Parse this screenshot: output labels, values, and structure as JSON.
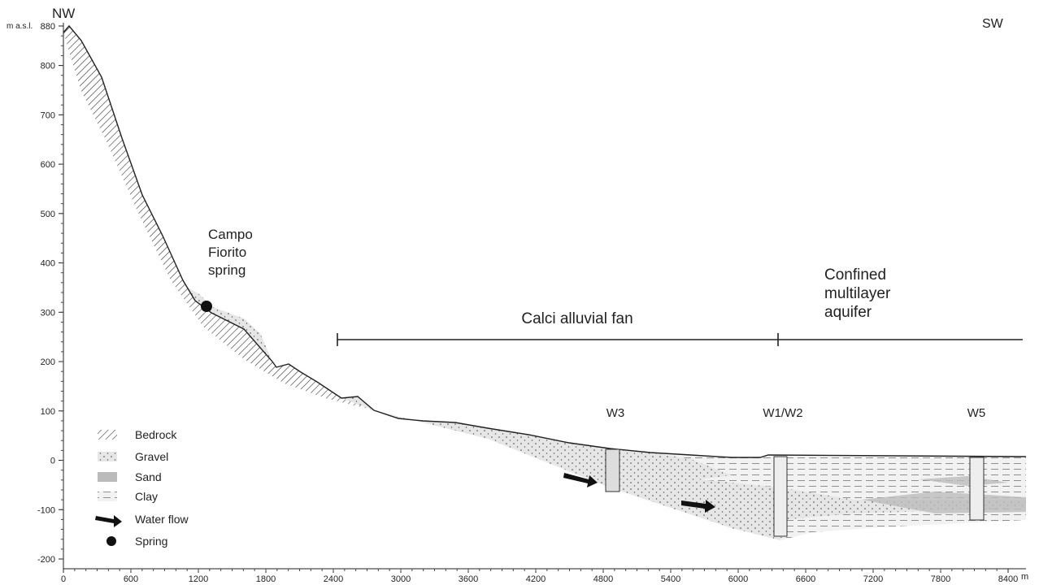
{
  "labels": {
    "nw": "NW",
    "sw": "SW",
    "y_unit": "m a.s.l.",
    "x_unit": "m",
    "spring": [
      "Campo",
      "Fiorito",
      "spring"
    ],
    "fan": "Calci alluvial fan",
    "aquifer": [
      "Confined",
      "multilayer",
      "aquifer"
    ],
    "wells": [
      "W3",
      "W1/W2",
      "W5"
    ]
  },
  "y_ticks": [
    880,
    800,
    700,
    600,
    500,
    400,
    300,
    200,
    100,
    0,
    -100,
    -200
  ],
  "x_ticks": [
    0,
    600,
    1200,
    1800,
    2400,
    3000,
    3600,
    4200,
    4800,
    5400,
    6000,
    6600,
    7200,
    7800,
    8400
  ],
  "legend": [
    "Bedrock",
    "Gravel",
    "Sand",
    "Clay",
    "Water flow",
    "Spring"
  ]
}
